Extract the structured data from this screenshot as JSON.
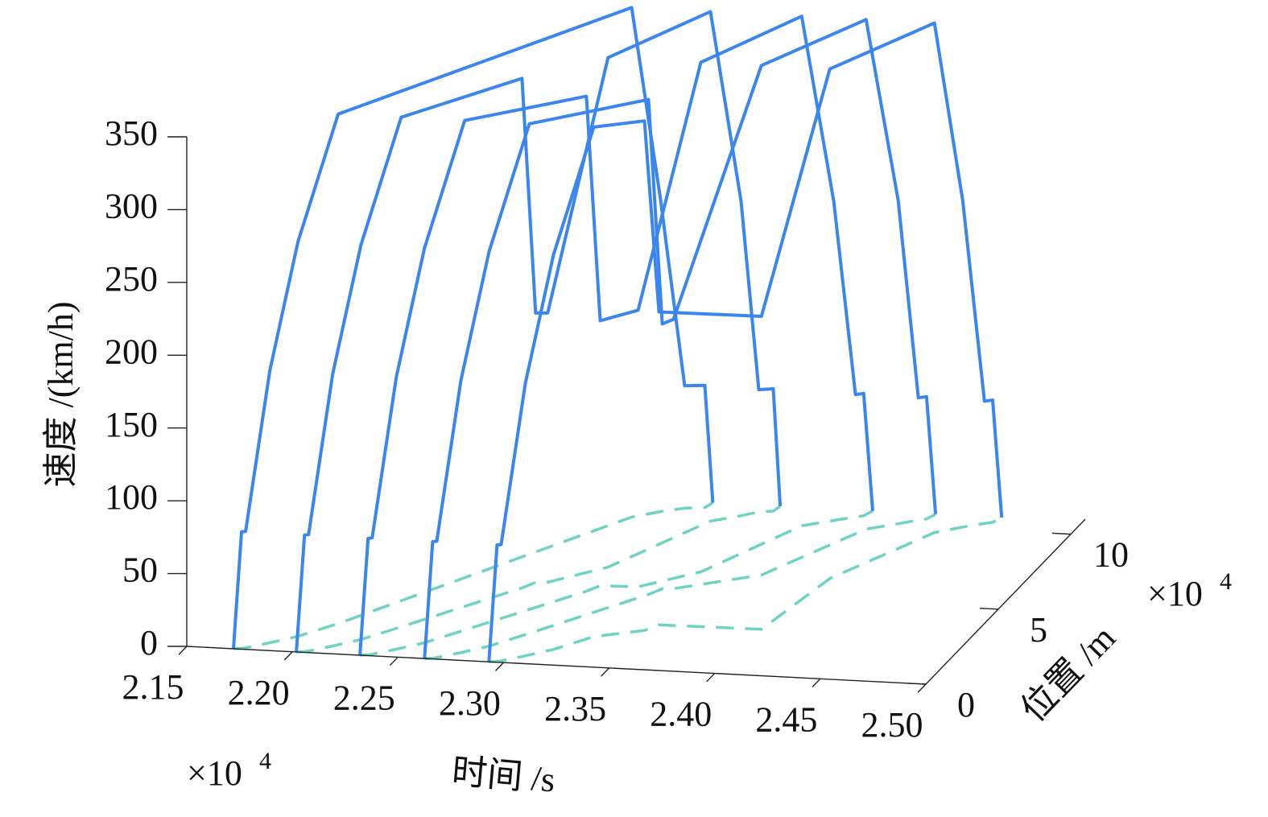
{
  "chart_data": {
    "type": "line3d",
    "x_label": "时间 /s",
    "y_label": "位置 /m",
    "z_label": "速度 /(km/h)",
    "x_multiplier": {
      "text": "×10",
      "exponent": "4"
    },
    "y_multiplier": {
      "text": "×10",
      "exponent": "4"
    },
    "xlim": [
      2.15,
      2.5
    ],
    "ylim": [
      0,
      11
    ],
    "zlim": [
      0,
      350
    ],
    "xticks": [
      2.15,
      {
        "value": 2.2,
        "label": "2.20"
      },
      2.25,
      {
        "value": 2.3,
        "label": "2.30"
      },
      2.35,
      {
        "value": 2.4,
        "label": "2.40"
      },
      2.45,
      {
        "value": 2.5,
        "label": "2.50"
      }
    ],
    "yticks": [
      0,
      5,
      10
    ],
    "zticks": [
      0,
      50,
      100,
      150,
      200,
      250,
      300,
      350
    ],
    "color": "#3a86ee",
    "shadow_color": "#6fd3c4",
    "shadow_dashed": true,
    "series": [
      {
        "t": [
          2.1721,
          2.1756,
          2.1772,
          2.1859,
          2.1958,
          2.2084,
          2.2944,
          2.305,
          2.3144,
          2.3233,
          2.3248
        ],
        "pos": [
          0,
          0.05,
          0.1,
          0.5,
          1,
          1.94,
          9.66,
          10.1,
          10.4,
          10.5,
          10.83
        ],
        "speed": [
          0,
          80,
          80,
          187,
          271,
          350,
          350,
          215,
          84,
          84,
          0
        ]
      },
      {
        "t": [
          2.2019,
          2.2054,
          2.207,
          2.2157,
          2.2256,
          2.2382,
          2.2758,
          2.2795,
          2.2849,
          2.3056,
          2.3317,
          2.3432,
          2.3495,
          2.3557,
          2.3567
        ],
        "pos": [
          0,
          0.05,
          0.1,
          0.5,
          1,
          1.94,
          4.8,
          5.2,
          5.25,
          6.4,
          9.66,
          10.1,
          10.4,
          10.5,
          10.83
        ],
        "speed": [
          0,
          80,
          80,
          187,
          271,
          350,
          350,
          185,
          185,
          350,
          350,
          216,
          84,
          84,
          0
        ]
      },
      {
        "t": [
          2.232,
          2.2355,
          2.2371,
          2.2458,
          2.2557,
          2.2683,
          2.3063,
          2.3101,
          2.3277,
          2.3495,
          2.3749,
          2.3871,
          2.3953,
          2.3985,
          2.4005
        ],
        "pos": [
          0,
          0.05,
          0.1,
          0.5,
          1,
          1.94,
          4.8,
          5.2,
          5.25,
          6.4,
          9.66,
          10.1,
          10.4,
          10.5,
          10.83
        ],
        "speed": [
          0,
          80,
          80,
          187,
          271,
          350,
          340,
          182,
          190,
          350,
          350,
          219,
          84,
          84,
          0
        ]
      },
      {
        "t": [
          2.2626,
          2.2661,
          2.2677,
          2.2764,
          2.2863,
          2.2989,
          2.3357,
          2.3395,
          2.3445,
          2.3782,
          2.4054,
          2.4176,
          2.4251,
          2.4283,
          2.4303
        ],
        "pos": [
          0,
          0.05,
          0.1,
          0.5,
          1,
          1.94,
          4.8,
          5.2,
          5.25,
          6.4,
          9.66,
          10.1,
          10.4,
          10.5,
          10.83
        ],
        "speed": [
          0,
          80,
          80,
          187,
          271,
          350,
          340,
          182,
          185,
          350,
          350,
          222,
          84,
          84,
          0
        ]
      },
      {
        "t": [
          2.2931,
          2.2966,
          2.2982,
          2.3069,
          2.3168,
          2.3294,
          2.3496,
          2.3537,
          2.4019,
          2.4106,
          2.4378,
          2.4482,
          2.4564,
          2.4596,
          2.4616
        ],
        "pos": [
          0,
          0.05,
          0.1,
          0.5,
          1,
          1.94,
          2.5,
          2.9,
          2.95,
          6.4,
          9.66,
          10.1,
          10.4,
          10.5,
          10.83
        ],
        "speed": [
          0,
          80,
          80,
          187,
          271,
          350,
          350,
          215,
          215,
          350,
          350,
          224,
          84,
          84,
          0
        ]
      }
    ]
  }
}
